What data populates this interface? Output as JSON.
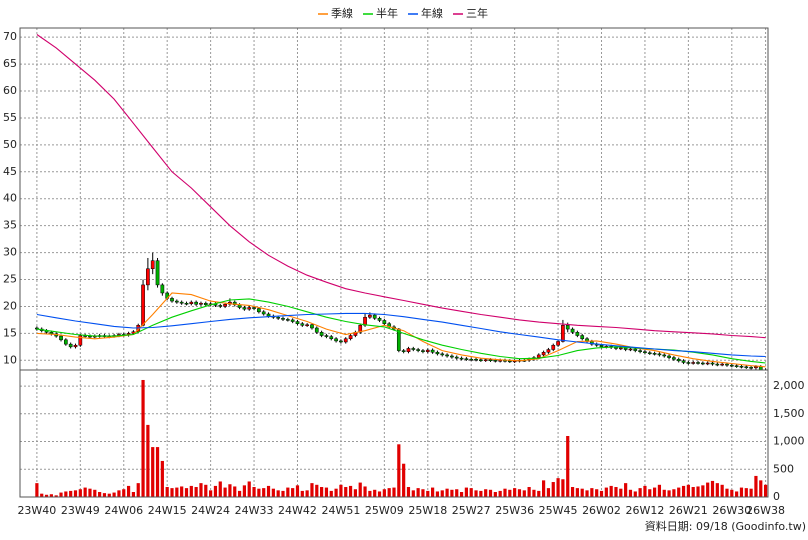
{
  "chart_data": {
    "type": "candlestick",
    "categories": [
      "23W40",
      null,
      null,
      null,
      null,
      null,
      null,
      null,
      null,
      "23W49",
      null,
      null,
      null,
      null,
      null,
      null,
      null,
      null,
      "24W06",
      null,
      null,
      null,
      null,
      null,
      null,
      null,
      null,
      "24W15",
      null,
      null,
      null,
      null,
      null,
      null,
      null,
      null,
      "24W24",
      null,
      null,
      null,
      null,
      null,
      null,
      null,
      null,
      "24W33",
      null,
      null,
      null,
      null,
      null,
      null,
      null,
      null,
      "24W42",
      null,
      null,
      null,
      null,
      null,
      null,
      null,
      null,
      "24W51",
      null,
      null,
      null,
      null,
      null,
      null,
      null,
      null,
      "25W09",
      null,
      null,
      null,
      null,
      null,
      null,
      null,
      null,
      "25W18",
      null,
      null,
      null,
      null,
      null,
      null,
      null,
      null,
      "25W27",
      null,
      null,
      null,
      null,
      null,
      null,
      null,
      null,
      "25W36",
      null,
      null,
      null,
      null,
      null,
      null,
      null,
      null,
      "25W45",
      null,
      null,
      null,
      null,
      null,
      null,
      null,
      null,
      "26W02",
      null,
      null,
      null,
      null,
      null,
      null,
      null,
      null,
      "26W12",
      null,
      null,
      null,
      null,
      null,
      null,
      null,
      null,
      "26W21",
      null,
      null,
      null,
      null,
      null,
      null,
      null,
      null,
      "26W30",
      null,
      null,
      null,
      null,
      null,
      null,
      "26W38"
    ],
    "xlim": [
      -3.5,
      151.5
    ],
    "ylim": [
      8.2,
      71.7
    ],
    "yticks": [
      10,
      15,
      20,
      25,
      30,
      35,
      40,
      45,
      50,
      55,
      60,
      65,
      70
    ],
    "y2lim": [
      0,
      2290
    ],
    "y2ticks": [
      0,
      500,
      {
        "value": 1000,
        "label": "1,000"
      },
      {
        "value": 1500,
        "label": "1,500"
      },
      {
        "value": 2000,
        "label": "2,000"
      }
    ],
    "grid": true,
    "legend": "top",
    "up_color": "#ff0000",
    "down_color": "#00b000",
    "open": [
      16.0,
      15.8,
      15.5,
      15.2,
      14.9,
      14.5,
      13.8,
      13.0,
      12.5,
      12.8,
      14.6,
      14.5,
      14.4,
      14.5,
      14.6,
      14.4,
      14.5,
      14.6,
      14.8,
      14.7,
      15.0,
      15.3,
      16.5,
      24.0,
      27.0,
      28.5,
      24.0,
      22.5,
      21.5,
      21.0,
      20.8,
      20.6,
      20.5,
      20.8,
      20.4,
      20.6,
      20.3,
      20.5,
      20.2,
      20.0,
      20.4,
      20.8,
      20.3,
      19.8,
      19.5,
      19.8,
      19.6,
      19.0,
      18.6,
      18.2,
      18.0,
      17.8,
      17.6,
      17.5,
      17.2,
      16.8,
      16.5,
      16.6,
      16.0,
      15.2,
      14.6,
      14.4,
      14.0,
      13.6,
      13.4,
      14.0,
      14.6,
      15.2,
      16.5,
      18.0,
      18.4,
      17.8,
      17.4,
      16.8,
      16.2,
      15.8,
      11.8,
      11.6,
      12.2,
      12.0,
      11.8,
      11.6,
      11.9,
      11.5,
      11.2,
      11.0,
      10.8,
      10.6,
      10.4,
      10.3,
      10.2,
      10.2,
      10.1,
      10.0,
      10.1,
      10.0,
      9.9,
      10.0,
      9.9,
      9.8,
      9.9,
      10.0,
      10.0,
      10.2,
      10.5,
      11.0,
      11.5,
      12.0,
      12.8,
      13.5,
      16.5,
      15.8,
      15.2,
      14.6,
      14.0,
      13.5,
      13.0,
      12.8,
      12.5,
      12.6,
      12.4,
      12.2,
      12.3,
      12.0,
      12.1,
      11.8,
      11.6,
      11.4,
      11.3,
      11.2,
      11.0,
      10.8,
      10.5,
      10.2,
      9.9,
      9.6,
      9.5,
      9.6,
      9.5,
      9.4,
      9.5,
      9.3,
      9.2,
      9.3,
      9.1,
      9.0,
      8.9,
      8.8,
      8.7,
      8.6,
      8.8,
      8.2
    ],
    "high": [
      16.3,
      16.1,
      15.8,
      15.5,
      15.2,
      14.8,
      14.1,
      13.3,
      13.1,
      14.9,
      14.9,
      14.8,
      14.8,
      14.9,
      14.9,
      14.8,
      14.9,
      15.1,
      15.1,
      15.3,
      15.6,
      16.8,
      25.0,
      29.0,
      30.0,
      29.0,
      24.3,
      22.8,
      21.8,
      21.3,
      21.1,
      20.9,
      21.1,
      21.1,
      20.9,
      20.9,
      20.8,
      20.8,
      20.5,
      20.7,
      21.5,
      21.1,
      20.6,
      20.1,
      20.1,
      20.1,
      19.9,
      19.3,
      18.9,
      18.5,
      18.3,
      18.1,
      17.9,
      17.8,
      17.5,
      17.1,
      16.9,
      16.9,
      16.3,
      15.5,
      14.9,
      14.7,
      14.3,
      13.9,
      14.3,
      14.9,
      15.5,
      16.8,
      18.6,
      18.9,
      18.7,
      18.1,
      17.7,
      17.1,
      16.5,
      16.0,
      12.1,
      12.5,
      12.5,
      12.3,
      12.1,
      12.2,
      12.2,
      11.8,
      11.5,
      11.3,
      11.1,
      10.9,
      10.7,
      10.6,
      10.5,
      10.5,
      10.4,
      10.4,
      10.4,
      10.3,
      10.3,
      10.3,
      10.2,
      10.2,
      10.3,
      10.3,
      10.5,
      10.8,
      11.3,
      11.8,
      12.3,
      13.1,
      13.8,
      17.5,
      17.0,
      16.1,
      15.5,
      14.9,
      14.3,
      13.8,
      13.3,
      13.1,
      12.9,
      12.9,
      12.7,
      12.6,
      12.6,
      12.4,
      12.4,
      12.1,
      11.9,
      11.7,
      11.6,
      11.5,
      11.3,
      11.1,
      10.8,
      10.5,
      10.2,
      9.9,
      9.9,
      9.9,
      9.8,
      9.8,
      9.8,
      9.6,
      9.6,
      9.6,
      9.4,
      9.3,
      9.2,
      9.1,
      9.0,
      9.1,
      9.1,
      8.5
    ],
    "low": [
      15.5,
      15.2,
      14.9,
      14.6,
      14.2,
      13.5,
      12.7,
      12.2,
      12.2,
      12.5,
      14.2,
      14.1,
      14.1,
      14.2,
      14.1,
      14.1,
      14.2,
      14.3,
      14.4,
      14.4,
      14.7,
      15.0,
      16.3,
      23.0,
      26.0,
      23.5,
      22.0,
      21.2,
      20.7,
      20.5,
      20.3,
      20.2,
      20.2,
      20.1,
      20.1,
      20.0,
      20.0,
      19.9,
      19.7,
      19.7,
      20.1,
      20.0,
      19.5,
      19.2,
      19.2,
      19.3,
      18.7,
      18.3,
      17.9,
      17.7,
      17.5,
      17.3,
      17.2,
      16.9,
      16.5,
      16.2,
      16.2,
      15.7,
      14.9,
      14.3,
      14.1,
      13.7,
      13.3,
      13.1,
      13.1,
      13.7,
      14.3,
      14.9,
      16.2,
      17.7,
      17.5,
      17.1,
      16.5,
      15.9,
      15.5,
      11.5,
      11.3,
      11.3,
      11.7,
      11.5,
      11.3,
      11.3,
      11.2,
      10.9,
      10.7,
      10.5,
      10.3,
      10.1,
      10.0,
      9.9,
      9.9,
      9.8,
      9.7,
      9.7,
      9.7,
      9.6,
      9.6,
      9.6,
      9.5,
      9.5,
      9.6,
      9.7,
      9.7,
      9.9,
      10.2,
      10.7,
      11.2,
      11.7,
      12.5,
      13.3,
      15.2,
      14.9,
      14.3,
      13.7,
      13.2,
      12.7,
      12.5,
      12.2,
      12.2,
      12.1,
      11.9,
      11.9,
      11.7,
      11.7,
      11.5,
      11.3,
      11.1,
      11.0,
      10.9,
      10.7,
      10.5,
      10.2,
      9.9,
      9.6,
      9.3,
      9.2,
      9.2,
      9.2,
      9.1,
      9.1,
      9.0,
      8.9,
      8.9,
      8.8,
      8.7,
      8.6,
      8.5,
      8.4,
      8.3,
      8.3,
      7.9,
      7.7
    ],
    "close": [
      15.8,
      15.5,
      15.2,
      14.9,
      14.5,
      13.8,
      13.0,
      12.5,
      12.8,
      14.6,
      14.5,
      14.4,
      14.5,
      14.6,
      14.4,
      14.5,
      14.6,
      14.8,
      14.7,
      15.0,
      15.3,
      16.5,
      24.0,
      27.0,
      28.5,
      24.0,
      22.5,
      21.5,
      21.0,
      20.8,
      20.6,
      20.5,
      20.8,
      20.4,
      20.6,
      20.3,
      20.5,
      20.2,
      20.0,
      20.4,
      20.8,
      20.3,
      19.8,
      19.5,
      19.8,
      19.6,
      19.0,
      18.6,
      18.2,
      18.0,
      17.8,
      17.6,
      17.5,
      17.2,
      16.8,
      16.5,
      16.6,
      16.0,
      15.2,
      14.6,
      14.4,
      14.0,
      13.6,
      13.4,
      14.0,
      14.6,
      15.2,
      16.5,
      18.0,
      18.4,
      17.8,
      17.4,
      16.8,
      16.2,
      15.8,
      11.8,
      11.6,
      12.2,
      12.0,
      11.8,
      11.6,
      11.9,
      11.5,
      11.2,
      11.0,
      10.8,
      10.6,
      10.4,
      10.3,
      10.2,
      10.2,
      10.1,
      10.0,
      10.1,
      10.0,
      9.9,
      10.0,
      9.9,
      9.8,
      9.9,
      10.0,
      10.0,
      10.2,
      10.5,
      11.0,
      11.5,
      12.0,
      12.8,
      13.5,
      16.5,
      15.8,
      15.2,
      14.6,
      14.0,
      13.5,
      13.0,
      12.8,
      12.5,
      12.6,
      12.4,
      12.2,
      12.3,
      12.0,
      12.1,
      11.8,
      11.6,
      11.4,
      11.3,
      11.2,
      11.0,
      10.8,
      10.5,
      10.2,
      9.9,
      9.6,
      9.5,
      9.6,
      9.5,
      9.4,
      9.5,
      9.3,
      9.2,
      9.3,
      9.1,
      9.0,
      8.9,
      8.8,
      8.7,
      8.6,
      8.8,
      8.2,
      8.0
    ],
    "series": [
      {
        "name": "季線",
        "color": "#ff8000",
        "x": [
          0,
          4,
          8,
          12,
          16,
          20,
          24,
          28,
          32,
          36,
          40,
          44,
          48,
          52,
          56,
          60,
          64,
          68,
          72,
          76,
          80,
          84,
          88,
          92,
          96,
          100,
          104,
          108,
          112,
          116,
          120,
          124,
          128,
          132,
          136,
          140,
          144,
          148,
          151
        ],
        "values": [
          15.0,
          14.8,
          14.3,
          14.0,
          14.3,
          14.8,
          18.5,
          22.5,
          22.2,
          21.0,
          20.5,
          20.2,
          19.4,
          18.3,
          17.2,
          15.8,
          14.8,
          15.5,
          16.5,
          15.5,
          13.5,
          11.8,
          11.0,
          10.4,
          10.1,
          9.9,
          10.3,
          11.8,
          13.5,
          13.6,
          13.0,
          12.3,
          11.8,
          11.0,
          10.3,
          9.8,
          9.4,
          9.0,
          8.8
        ]
      },
      {
        "name": "半年",
        "color": "#00d000",
        "x": [
          0,
          4,
          8,
          12,
          16,
          20,
          24,
          28,
          32,
          36,
          40,
          44,
          48,
          52,
          56,
          60,
          64,
          68,
          72,
          76,
          80,
          84,
          88,
          92,
          96,
          100,
          104,
          108,
          112,
          116,
          120,
          124,
          128,
          132,
          136,
          140,
          144,
          148,
          151
        ],
        "values": [
          15.8,
          15.3,
          14.8,
          14.5,
          14.5,
          14.8,
          16.5,
          18.0,
          19.2,
          20.3,
          21.2,
          21.4,
          20.8,
          20.0,
          19.0,
          18.0,
          17.2,
          16.6,
          16.2,
          15.0,
          13.8,
          12.8,
          12.0,
          11.3,
          10.7,
          10.3,
          10.4,
          10.9,
          11.8,
          12.3,
          12.5,
          12.3,
          12.1,
          11.9,
          11.5,
          11.0,
          10.3,
          9.8,
          9.5
        ]
      },
      {
        "name": "年線",
        "color": "#0050f0",
        "x": [
          0,
          4,
          8,
          12,
          16,
          20,
          24,
          28,
          32,
          36,
          40,
          44,
          48,
          52,
          56,
          60,
          64,
          68,
          72,
          76,
          80,
          84,
          88,
          92,
          96,
          100,
          104,
          108,
          112,
          116,
          120,
          124,
          128,
          132,
          136,
          140,
          144,
          148,
          151
        ],
        "values": [
          18.5,
          17.9,
          17.3,
          16.8,
          16.3,
          16.0,
          16.1,
          16.4,
          16.8,
          17.2,
          17.6,
          17.9,
          18.1,
          18.3,
          18.5,
          18.6,
          18.7,
          18.7,
          18.5,
          18.1,
          17.6,
          17.1,
          16.5,
          15.9,
          15.3,
          14.8,
          14.3,
          13.8,
          13.4,
          13.0,
          12.7,
          12.4,
          12.1,
          11.8,
          11.6,
          11.3,
          11.0,
          10.8,
          10.7
        ]
      },
      {
        "name": "三年",
        "color": "#d0006c",
        "x": [
          0,
          4,
          8,
          12,
          16,
          20,
          24,
          28,
          32,
          36,
          40,
          44,
          48,
          52,
          56,
          60,
          64,
          68,
          72,
          76,
          80,
          84,
          88,
          92,
          96,
          100,
          104,
          108,
          112,
          116,
          120,
          124,
          128,
          132,
          136,
          140,
          144,
          148,
          151
        ],
        "values": [
          70.5,
          68.0,
          65.0,
          62.0,
          58.5,
          54.0,
          49.5,
          45.0,
          42.0,
          38.5,
          35.0,
          32.0,
          29.5,
          27.5,
          25.8,
          24.5,
          23.3,
          22.5,
          21.8,
          21.1,
          20.4,
          19.7,
          19.1,
          18.5,
          18.0,
          17.5,
          17.1,
          16.8,
          16.5,
          16.3,
          16.1,
          15.8,
          15.5,
          15.3,
          15.1,
          14.9,
          14.6,
          14.4,
          14.2
        ]
      }
    ],
    "volume": {
      "axis": "y2",
      "color": "#e00000",
      "values": [
        250,
        60,
        40,
        50,
        30,
        80,
        100,
        110,
        120,
        140,
        170,
        150,
        130,
        90,
        70,
        60,
        80,
        120,
        140,
        200,
        90,
        250,
        2110,
        1300,
        900,
        900,
        650,
        180,
        160,
        170,
        190,
        160,
        200,
        180,
        250,
        220,
        120,
        200,
        280,
        170,
        230,
        190,
        110,
        210,
        280,
        180,
        150,
        160,
        200,
        150,
        120,
        110,
        170,
        160,
        210,
        110,
        120,
        250,
        220,
        180,
        170,
        110,
        150,
        220,
        180,
        200,
        140,
        260,
        190,
        110,
        130,
        100,
        140,
        160,
        170,
        950,
        600,
        180,
        120,
        160,
        140,
        110,
        170,
        100,
        120,
        150,
        130,
        140,
        90,
        170,
        160,
        120,
        110,
        140,
        130,
        90,
        110,
        150,
        130,
        160,
        140,
        120,
        180,
        130,
        110,
        300,
        160,
        270,
        340,
        320,
        1100,
        180,
        160,
        150,
        120,
        160,
        140,
        110,
        170,
        200,
        180,
        150,
        250,
        130,
        100,
        160,
        200,
        140,
        170,
        220,
        130,
        120,
        140,
        170,
        200,
        220,
        180,
        190,
        210,
        260,
        290,
        250,
        220,
        150,
        130,
        100,
        170,
        160,
        150,
        380,
        300,
        220
      ]
    },
    "source": "資料日期: 09/18  (Goodinfo.tw)"
  }
}
